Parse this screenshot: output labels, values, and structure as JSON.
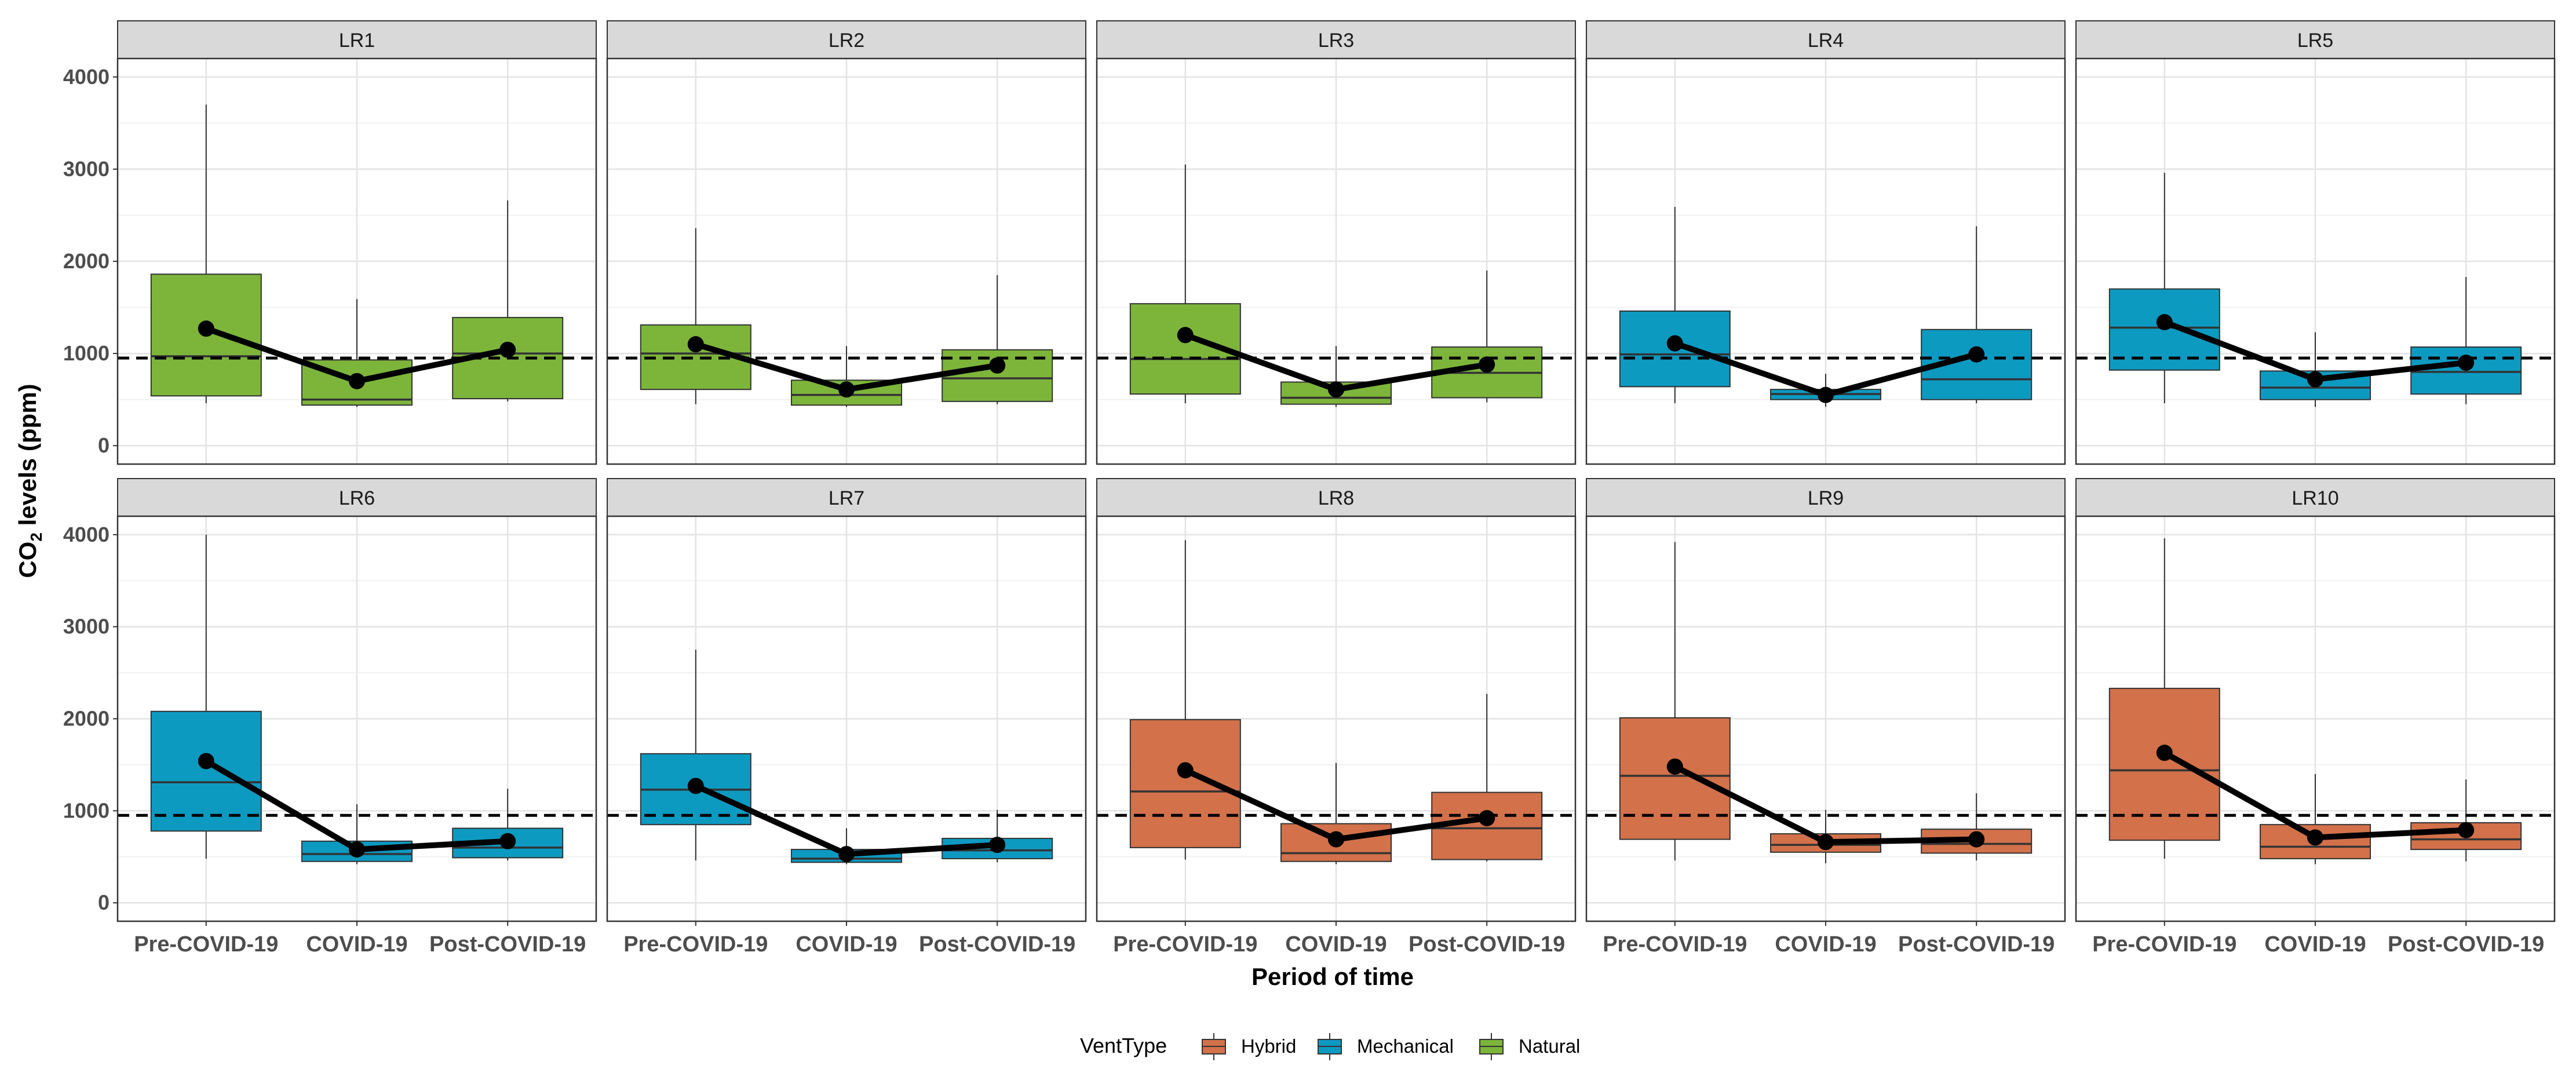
{
  "chart_data": {
    "type": "boxplot",
    "title": "",
    "xlabel": "Period of time",
    "ylabel_parts": [
      "CO",
      "2",
      " levels (ppm)"
    ],
    "categories": [
      "Pre-COVID-19",
      "COVID-19",
      "Post-COVID-19"
    ],
    "ylim": [
      -200,
      4200
    ],
    "yticks": [
      0,
      1000,
      2000,
      3000,
      4000
    ],
    "reference_line": 950,
    "legend": {
      "title": "VentType",
      "position": "bottom",
      "entries": [
        {
          "name": "Hybrid",
          "color": "#D2714A"
        },
        {
          "name": "Mechanical",
          "color": "#0D9AC1"
        },
        {
          "name": "Natural",
          "color": "#7DB53B"
        }
      ]
    },
    "panels": [
      {
        "name": "LR1",
        "vent": "Natural",
        "means": [
          1270,
          700,
          1040
        ],
        "boxes": [
          [
            460,
            540,
            970,
            1860,
            3700
          ],
          [
            420,
            440,
            500,
            930,
            1590
          ],
          [
            480,
            510,
            1000,
            1390,
            2660
          ]
        ]
      },
      {
        "name": "LR2",
        "vent": "Natural",
        "means": [
          1100,
          610,
          870
        ],
        "boxes": [
          [
            450,
            610,
            1000,
            1310,
            2360
          ],
          [
            420,
            440,
            550,
            710,
            1080
          ],
          [
            450,
            480,
            730,
            1040,
            1850
          ]
        ]
      },
      {
        "name": "LR3",
        "vent": "Natural",
        "means": [
          1200,
          610,
          880
        ],
        "boxes": [
          [
            460,
            560,
            940,
            1540,
            3050
          ],
          [
            420,
            450,
            520,
            690,
            1080
          ],
          [
            470,
            520,
            790,
            1070,
            1900
          ]
        ]
      },
      {
        "name": "LR4",
        "vent": "Mechanical",
        "means": [
          1110,
          550,
          990
        ],
        "boxes": [
          [
            460,
            640,
            990,
            1460,
            2590
          ],
          [
            420,
            500,
            560,
            610,
            780
          ],
          [
            460,
            500,
            720,
            1260,
            2380
          ]
        ]
      },
      {
        "name": "LR5",
        "vent": "Mechanical",
        "means": [
          1340,
          720,
          900
        ],
        "boxes": [
          [
            460,
            820,
            1280,
            1700,
            2960
          ],
          [
            420,
            500,
            630,
            810,
            1230
          ],
          [
            450,
            560,
            800,
            1070,
            1830
          ]
        ]
      },
      {
        "name": "LR6",
        "vent": "Mechanical",
        "means": [
          1540,
          580,
          670
        ],
        "boxes": [
          [
            480,
            780,
            1310,
            2080,
            4000
          ],
          [
            420,
            450,
            530,
            670,
            1070
          ],
          [
            460,
            490,
            600,
            810,
            1240
          ]
        ]
      },
      {
        "name": "LR7",
        "vent": "Mechanical",
        "means": [
          1270,
          530,
          630
        ],
        "boxes": [
          [
            460,
            850,
            1230,
            1620,
            2750
          ],
          [
            420,
            440,
            480,
            580,
            810
          ],
          [
            440,
            480,
            570,
            700,
            1010
          ]
        ]
      },
      {
        "name": "LR8",
        "vent": "Hybrid",
        "means": [
          1440,
          690,
          920
        ],
        "boxes": [
          [
            470,
            600,
            1210,
            1990,
            3940
          ],
          [
            420,
            450,
            540,
            860,
            1520
          ],
          [
            450,
            470,
            810,
            1200,
            2270
          ]
        ]
      },
      {
        "name": "LR9",
        "vent": "Hybrid",
        "means": [
          1480,
          660,
          690
        ],
        "boxes": [
          [
            460,
            690,
            1380,
            2010,
            3920
          ],
          [
            430,
            550,
            630,
            750,
            1010
          ],
          [
            460,
            540,
            640,
            800,
            1190
          ]
        ]
      },
      {
        "name": "LR10",
        "vent": "Hybrid",
        "means": [
          1630,
          710,
          790
        ],
        "boxes": [
          [
            480,
            680,
            1440,
            2330,
            3960
          ],
          [
            420,
            480,
            610,
            850,
            1400
          ],
          [
            450,
            580,
            690,
            870,
            1340
          ]
        ]
      }
    ]
  }
}
